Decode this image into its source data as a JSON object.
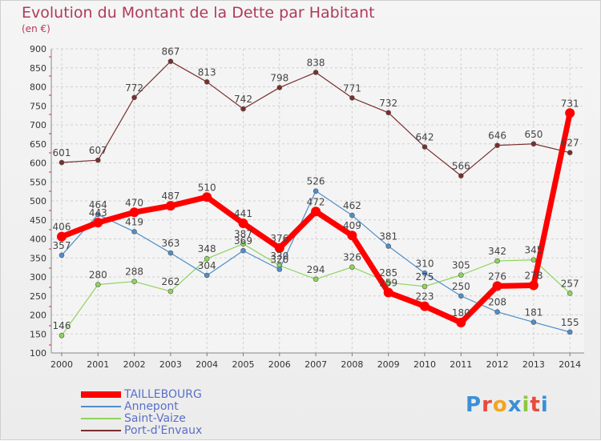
{
  "title": "Evolution du Montant de la Dette par Habitant",
  "unit_label": "(en €)",
  "brand": "Proxiti",
  "colors": {
    "TAILLEBOURG": "#ff0000",
    "Annepont": "#4f8ec9",
    "Saint-Vaize": "#8ed45c",
    "Port-d'Envaux": "#7a2e2e",
    "title": "#b03a5a",
    "legend_text": "#5a6fc6"
  },
  "chart_data": {
    "type": "line",
    "title": "Evolution du Montant de la Dette par Habitant",
    "ylabel": "(en €)",
    "xlabel": "",
    "x": [
      "2000",
      "2001",
      "2002",
      "2003",
      "2004",
      "2005",
      "2006",
      "2007",
      "2008",
      "2009",
      "2010",
      "2011",
      "2012",
      "2013",
      "2014"
    ],
    "ylim": [
      100,
      900
    ],
    "yticks": [
      100,
      150,
      200,
      250,
      300,
      350,
      400,
      450,
      500,
      550,
      600,
      650,
      700,
      750,
      800,
      850,
      900
    ],
    "grid": true,
    "legend_position": "bottom-left",
    "series": [
      {
        "name": "TAILLEBOURG",
        "values": [
          406,
          443,
          470,
          487,
          510,
          441,
          376,
          472,
          409,
          259,
          223,
          180,
          276,
          278,
          731
        ]
      },
      {
        "name": "Annepont",
        "values": [
          357,
          464,
          419,
          363,
          304,
          369,
          320,
          526,
          462,
          381,
          310,
          250,
          208,
          181,
          155
        ]
      },
      {
        "name": "Saint-Vaize",
        "values": [
          146,
          280,
          288,
          262,
          348,
          387,
          330,
          294,
          326,
          285,
          275,
          305,
          342,
          345,
          257
        ]
      },
      {
        "name": "Port-d'Envaux",
        "values": [
          601,
          607,
          772,
          867,
          813,
          742,
          798,
          838,
          771,
          732,
          642,
          566,
          646,
          650,
          627
        ]
      }
    ]
  }
}
